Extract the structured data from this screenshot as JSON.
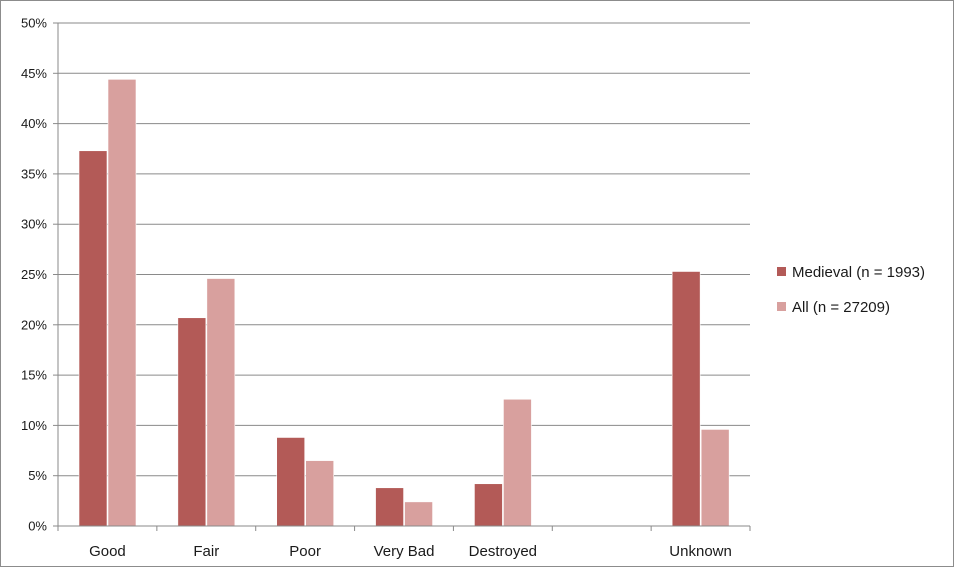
{
  "chart_data": {
    "type": "bar",
    "categories": [
      "Good",
      "Fair",
      "Poor",
      "Very Bad",
      "Destroyed",
      "",
      "Unknown"
    ],
    "series": [
      {
        "name": "Medieval (n = 1993)",
        "color": "#b35a57",
        "values": [
          37.3,
          20.7,
          8.8,
          3.8,
          4.2,
          null,
          25.3
        ]
      },
      {
        "name": "All (n = 27209)",
        "color": "#d8a09e",
        "values": [
          44.4,
          24.6,
          6.5,
          2.4,
          12.6,
          null,
          9.6
        ]
      }
    ],
    "ylim": [
      0,
      50
    ],
    "yticks": [
      "0%",
      "5%",
      "10%",
      "15%",
      "20%",
      "25%",
      "30%",
      "35%",
      "40%",
      "45%",
      "50%"
    ],
    "grid": true,
    "legend_position": "right"
  }
}
